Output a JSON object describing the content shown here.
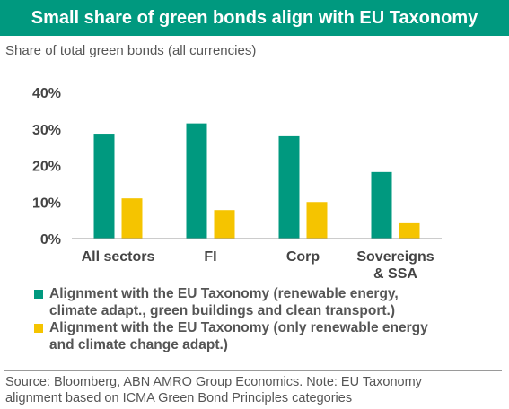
{
  "header": {
    "title": "Small share of green bonds align with EU Taxonomy",
    "subtitle": "Share of total green bonds (all currencies)"
  },
  "colors": {
    "header_bg": "#00997f",
    "series_1": "#00997f",
    "series_2": "#f5c400",
    "text": "#444444"
  },
  "chart_data": {
    "type": "bar",
    "categories": [
      "All sectors",
      "FI",
      "Corp",
      "Sovereigns\n& SSA"
    ],
    "category_lines": [
      [
        "All sectors"
      ],
      [
        "FI"
      ],
      [
        "Corp"
      ],
      [
        "Sovereigns",
        "& SSA"
      ]
    ],
    "series": [
      {
        "name": "Alignment with the EU Taxonomy (renewable energy, climate adapt., green buildings and clean transport.)",
        "name_lines": [
          "Alignment with the EU Taxonomy (renewable energy,",
          "climate adapt., green buildings and clean transport.)"
        ],
        "values": [
          28.7,
          31.5,
          28.0,
          18.2
        ]
      },
      {
        "name": "Alignment with the EU Taxonomy (only renewable energy and climate change adapt.)",
        "name_lines": [
          "Alignment with the EU Taxonomy (only renewable energy",
          "and climate change adapt.)"
        ],
        "values": [
          11.0,
          7.8,
          10.0,
          4.2
        ]
      }
    ],
    "ylim": [
      0,
      40
    ],
    "yticks": [
      0,
      10,
      20,
      30,
      40
    ],
    "ytick_labels": [
      "0%",
      "10%",
      "20%",
      "30%",
      "40%"
    ],
    "grid": false,
    "legend": "bottom"
  },
  "footer": {
    "source_line1": "Source: Bloomberg, ABN AMRO Group Economics. Note: EU Taxonomy",
    "source_line2": "alignment based on ICMA Green Bond Principles categories"
  }
}
